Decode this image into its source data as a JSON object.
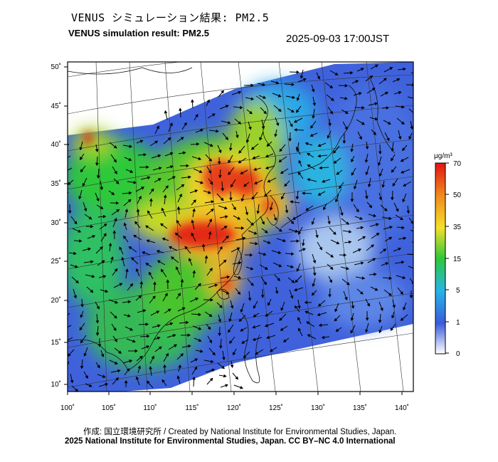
{
  "header": {
    "title_jp": "VENUS シミュレーション結果: PM2.5",
    "title_en": "VENUS simulation result: PM2.5",
    "timestamp": "2025-09-03 17:00JST"
  },
  "map": {
    "lon_labels": [
      "100˚",
      "105˚",
      "110˚",
      "115˚",
      "120˚",
      "125˚",
      "130˚",
      "135˚",
      "140˚"
    ],
    "lat_labels": [
      "50˚",
      "45˚",
      "40˚",
      "35˚",
      "30˚",
      "25˚",
      "20˚",
      "15˚",
      "10˚"
    ]
  },
  "colorbar": {
    "unit": "μg/m³",
    "tick_labels": [
      "70",
      "50",
      "35",
      "15",
      "5",
      "1",
      "0"
    ],
    "colors": [
      "#ffffff",
      "#3b5bdb",
      "#26b5e8",
      "#2ec83a",
      "#f5e02a",
      "#f08a1c",
      "#e31414"
    ]
  },
  "footer": {
    "credit": "作成: 国立環境研究所 / Created by National Institute for Environmental Studies, Japan.",
    "license": "2025 National Institute for Environmental Studies, Japan. CC BY–NC 4.0 International"
  }
}
